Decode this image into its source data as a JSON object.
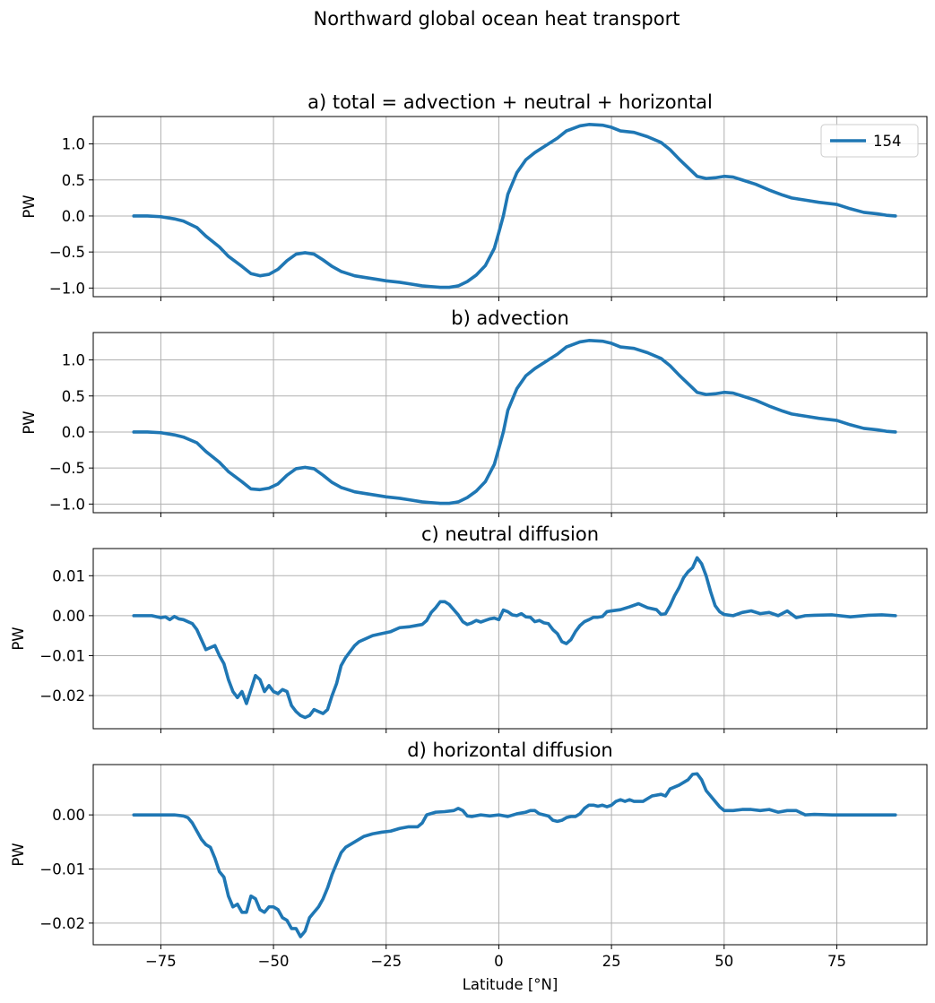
{
  "figure_title": "Northward global ocean heat transport",
  "chart_data": [
    {
      "type": "line",
      "title": "a) total = advection + neutral + horizontal",
      "xlabel": "",
      "ylabel": "PW",
      "xlim": [
        -90,
        95
      ],
      "ylim": [
        -1.12,
        1.38
      ],
      "xticks": [
        -75,
        -50,
        -25,
        0,
        25,
        50,
        75
      ],
      "xtick_labels": [
        "−75",
        "−50",
        "−25",
        "0",
        "25",
        "50",
        "75"
      ],
      "show_xtick_labels": false,
      "yticks": [
        -1.0,
        -0.5,
        0.0,
        0.5,
        1.0
      ],
      "ytick_labels": [
        "−1.0",
        "−0.5",
        "0.0",
        "0.5",
        "1.0"
      ],
      "grid": true,
      "legend": {
        "position": "upper-right",
        "entries": [
          "154"
        ]
      },
      "series": [
        {
          "name": "154",
          "color": "#1f77b4",
          "x": [
            -81,
            -78,
            -75,
            -72,
            -70,
            -67,
            -65,
            -62,
            -60,
            -57,
            -55,
            -53,
            -51,
            -49,
            -47,
            -45,
            -43,
            -41,
            -39,
            -37,
            -35,
            -32,
            -30,
            -27,
            -25,
            -22,
            -20,
            -17,
            -15,
            -13,
            -11,
            -9,
            -7,
            -5,
            -3,
            -1,
            0,
            1,
            2,
            4,
            6,
            8,
            10,
            13,
            15,
            18,
            20,
            23,
            25,
            27,
            30,
            33,
            36,
            38,
            40,
            42,
            44,
            46,
            48,
            50,
            52,
            54,
            57,
            60,
            63,
            65,
            68,
            71,
            75,
            78,
            81,
            84,
            86,
            88
          ],
          "y": [
            0.0,
            0.0,
            -0.01,
            -0.04,
            -0.07,
            -0.16,
            -0.28,
            -0.43,
            -0.56,
            -0.7,
            -0.8,
            -0.83,
            -0.81,
            -0.74,
            -0.62,
            -0.53,
            -0.51,
            -0.53,
            -0.61,
            -0.7,
            -0.77,
            -0.83,
            -0.85,
            -0.88,
            -0.9,
            -0.92,
            -0.94,
            -0.97,
            -0.98,
            -0.99,
            -0.99,
            -0.97,
            -0.91,
            -0.82,
            -0.69,
            -0.45,
            -0.23,
            0.0,
            0.3,
            0.6,
            0.78,
            0.88,
            0.96,
            1.08,
            1.18,
            1.25,
            1.27,
            1.26,
            1.23,
            1.18,
            1.16,
            1.1,
            1.02,
            0.92,
            0.79,
            0.67,
            0.55,
            0.52,
            0.53,
            0.55,
            0.54,
            0.5,
            0.44,
            0.36,
            0.29,
            0.25,
            0.22,
            0.19,
            0.16,
            0.1,
            0.05,
            0.03,
            0.01,
            0.0
          ]
        }
      ]
    },
    {
      "type": "line",
      "title": "b) advection",
      "xlabel": "",
      "ylabel": "PW",
      "xlim": [
        -90,
        95
      ],
      "ylim": [
        -1.12,
        1.38
      ],
      "xticks": [
        -75,
        -50,
        -25,
        0,
        25,
        50,
        75
      ],
      "xtick_labels": [
        "−75",
        "−50",
        "−25",
        "0",
        "25",
        "50",
        "75"
      ],
      "show_xtick_labels": false,
      "yticks": [
        -1.0,
        -0.5,
        0.0,
        0.5,
        1.0
      ],
      "ytick_labels": [
        "−1.0",
        "−0.5",
        "0.0",
        "0.5",
        "1.0"
      ],
      "grid": true,
      "series": [
        {
          "name": "154",
          "color": "#1f77b4",
          "x": [
            -81,
            -78,
            -75,
            -72,
            -70,
            -67,
            -65,
            -62,
            -60,
            -57,
            -55,
            -53,
            -51,
            -49,
            -47,
            -45,
            -43,
            -41,
            -39,
            -37,
            -35,
            -32,
            -30,
            -27,
            -25,
            -22,
            -20,
            -17,
            -15,
            -13,
            -11,
            -9,
            -7,
            -5,
            -3,
            -1,
            0,
            1,
            2,
            4,
            6,
            8,
            10,
            13,
            15,
            18,
            20,
            23,
            25,
            27,
            30,
            33,
            36,
            38,
            40,
            42,
            44,
            46,
            48,
            50,
            52,
            54,
            57,
            60,
            63,
            65,
            68,
            71,
            75,
            78,
            81,
            84,
            86,
            88
          ],
          "y": [
            0.0,
            0.0,
            -0.01,
            -0.04,
            -0.07,
            -0.15,
            -0.27,
            -0.42,
            -0.55,
            -0.69,
            -0.79,
            -0.8,
            -0.78,
            -0.72,
            -0.6,
            -0.51,
            -0.49,
            -0.51,
            -0.6,
            -0.7,
            -0.77,
            -0.83,
            -0.85,
            -0.88,
            -0.9,
            -0.92,
            -0.94,
            -0.97,
            -0.98,
            -0.99,
            -0.99,
            -0.97,
            -0.91,
            -0.82,
            -0.69,
            -0.45,
            -0.23,
            0.0,
            0.3,
            0.6,
            0.78,
            0.88,
            0.96,
            1.08,
            1.18,
            1.25,
            1.27,
            1.26,
            1.23,
            1.18,
            1.16,
            1.1,
            1.02,
            0.92,
            0.79,
            0.67,
            0.55,
            0.52,
            0.53,
            0.55,
            0.54,
            0.5,
            0.44,
            0.36,
            0.29,
            0.25,
            0.22,
            0.19,
            0.16,
            0.1,
            0.05,
            0.03,
            0.01,
            0.0
          ]
        }
      ]
    },
    {
      "type": "line",
      "title": "c) neutral diffusion",
      "xlabel": "",
      "ylabel": "PW",
      "xlim": [
        -90,
        95
      ],
      "ylim": [
        -0.0283,
        0.0168
      ],
      "xticks": [
        -75,
        -50,
        -25,
        0,
        25,
        50,
        75
      ],
      "xtick_labels": [
        "−75",
        "−50",
        "−25",
        "0",
        "25",
        "50",
        "75"
      ],
      "show_xtick_labels": false,
      "yticks": [
        -0.02,
        -0.01,
        0.0,
        0.01
      ],
      "ytick_labels": [
        "−0.02",
        "−0.01",
        "0.00",
        "0.01"
      ],
      "grid": true,
      "series": [
        {
          "name": "154",
          "color": "#1f77b4",
          "x": [
            -81,
            -77,
            -75,
            -74,
            -73,
            -72,
            -71,
            -70,
            -69,
            -68,
            -67,
            -66,
            -65,
            -64,
            -63,
            -62,
            -61,
            -60,
            -59,
            -58,
            -57,
            -56,
            -55,
            -54,
            -53,
            -52,
            -51,
            -50,
            -49,
            -48,
            -47,
            -46,
            -45,
            -44,
            -43,
            -42,
            -41,
            -40,
            -39,
            -38,
            -37,
            -36,
            -35,
            -34,
            -33,
            -32,
            -31,
            -30,
            -28,
            -26,
            -24,
            -22,
            -20,
            -18,
            -17,
            -16,
            -15,
            -14,
            -13,
            -12,
            -11,
            -10,
            -9,
            -8,
            -7,
            -6,
            -5,
            -4,
            -3,
            -2,
            -1,
            0,
            1,
            2,
            3,
            4,
            5,
            6,
            7,
            8,
            9,
            10,
            11,
            12,
            13,
            14,
            15,
            16,
            17,
            18,
            19,
            20,
            21,
            22,
            23,
            24,
            25,
            27,
            29,
            31,
            33,
            35,
            36,
            37,
            38,
            39,
            40,
            41,
            42,
            43,
            44,
            45,
            46,
            47,
            48,
            49,
            50,
            52,
            54,
            56,
            58,
            60,
            62,
            64,
            66,
            68,
            70,
            74,
            78,
            82,
            85,
            88
          ],
          "y": [
            0.0,
            0.0,
            -0.0005,
            -0.0003,
            -0.001,
            -0.0002,
            -0.0008,
            -0.001,
            -0.0015,
            -0.002,
            -0.0035,
            -0.006,
            -0.0085,
            -0.008,
            -0.0075,
            -0.01,
            -0.012,
            -0.016,
            -0.019,
            -0.0205,
            -0.019,
            -0.022,
            -0.0185,
            -0.015,
            -0.016,
            -0.019,
            -0.0175,
            -0.019,
            -0.0195,
            -0.0185,
            -0.019,
            -0.0225,
            -0.024,
            -0.025,
            -0.0255,
            -0.025,
            -0.0235,
            -0.024,
            -0.0245,
            -0.0235,
            -0.02,
            -0.017,
            -0.0125,
            -0.0105,
            -0.009,
            -0.0075,
            -0.0065,
            -0.006,
            -0.005,
            -0.0045,
            -0.004,
            -0.003,
            -0.0028,
            -0.0024,
            -0.0022,
            -0.0012,
            0.0008,
            0.002,
            0.0035,
            0.0035,
            0.0028,
            0.0015,
            0.0002,
            -0.0015,
            -0.0022,
            -0.0018,
            -0.0012,
            -0.0016,
            -0.0012,
            -0.0008,
            -0.0006,
            -0.001,
            0.0014,
            0.001,
            0.0002,
            0.0,
            0.0005,
            -0.0003,
            -0.0004,
            -0.0015,
            -0.0012,
            -0.0018,
            -0.002,
            -0.0035,
            -0.0045,
            -0.0065,
            -0.007,
            -0.006,
            -0.004,
            -0.0025,
            -0.0015,
            -0.001,
            -0.0004,
            -0.0004,
            -0.0002,
            0.001,
            0.0012,
            0.0015,
            0.0022,
            0.003,
            0.002,
            0.0015,
            0.0003,
            0.0005,
            0.0025,
            0.005,
            0.007,
            0.0095,
            0.011,
            0.012,
            0.0145,
            0.013,
            0.01,
            0.006,
            0.0025,
            0.001,
            0.0003,
            0.0,
            0.0008,
            0.0012,
            0.0005,
            0.0008,
            0.0,
            0.0012,
            -0.0005,
            0.0,
            0.0001,
            0.0002,
            -0.0003,
            0.0001,
            0.0002,
            0.0
          ]
        }
      ]
    },
    {
      "type": "line",
      "title": "d) horizontal diffusion",
      "xlabel": "Latitude [°N]",
      "ylabel": "PW",
      "xlim": [
        -90,
        95
      ],
      "ylim": [
        -0.024,
        0.0093
      ],
      "xticks": [
        -75,
        -50,
        -25,
        0,
        25,
        50,
        75
      ],
      "xtick_labels": [
        "−75",
        "−50",
        "−25",
        "0",
        "25",
        "50",
        "75"
      ],
      "show_xtick_labels": true,
      "yticks": [
        -0.02,
        -0.01,
        0.0
      ],
      "ytick_labels": [
        "−0.02",
        "−0.01",
        "0.00"
      ],
      "grid": true,
      "series": [
        {
          "name": "154",
          "color": "#1f77b4",
          "x": [
            -81,
            -77,
            -74,
            -72,
            -70,
            -69,
            -68,
            -67,
            -66,
            -65,
            -64,
            -63,
            -62,
            -61,
            -60,
            -59,
            -58,
            -57,
            -56,
            -55,
            -54,
            -53,
            -52,
            -51,
            -50,
            -49,
            -48,
            -47,
            -46,
            -45,
            -44,
            -43,
            -42,
            -41,
            -40,
            -39,
            -38,
            -37,
            -36,
            -35,
            -34,
            -33,
            -32,
            -31,
            -30,
            -28,
            -26,
            -24,
            -22,
            -20,
            -18,
            -17,
            -16,
            -14,
            -12,
            -10,
            -9,
            -8,
            -7,
            -6,
            -4,
            -2,
            0,
            2,
            4,
            6,
            7,
            8,
            9,
            10,
            11,
            12,
            13,
            14,
            15,
            16,
            17,
            18,
            19,
            20,
            21,
            22,
            23,
            24,
            25,
            26,
            27,
            28,
            29,
            30,
            32,
            34,
            36,
            37,
            38,
            40,
            41,
            42,
            43,
            44,
            45,
            46,
            47,
            48,
            49,
            50,
            52,
            54,
            56,
            58,
            60,
            62,
            64,
            66,
            68,
            70,
            74,
            78,
            82,
            85,
            88
          ],
          "y": [
            0.0,
            0.0,
            0.0,
            0.0,
            -0.0002,
            -0.0005,
            -0.0015,
            -0.003,
            -0.0045,
            -0.0055,
            -0.006,
            -0.008,
            -0.0105,
            -0.0115,
            -0.015,
            -0.017,
            -0.0165,
            -0.018,
            -0.018,
            -0.015,
            -0.0155,
            -0.0175,
            -0.018,
            -0.017,
            -0.017,
            -0.0175,
            -0.019,
            -0.0195,
            -0.021,
            -0.021,
            -0.0225,
            -0.0215,
            -0.019,
            -0.018,
            -0.017,
            -0.0155,
            -0.0135,
            -0.011,
            -0.009,
            -0.007,
            -0.006,
            -0.0055,
            -0.005,
            -0.0045,
            -0.004,
            -0.0035,
            -0.0032,
            -0.003,
            -0.0025,
            -0.0022,
            -0.0022,
            -0.0015,
            0.0,
            0.0005,
            0.0006,
            0.0008,
            0.0012,
            0.0008,
            -0.0002,
            -0.0003,
            0.0,
            -0.0002,
            0.0,
            -0.0003,
            0.0002,
            0.0005,
            0.0008,
            0.0008,
            0.0002,
            0.0,
            -0.0002,
            -0.001,
            -0.0012,
            -0.001,
            -0.0005,
            -0.0003,
            -0.0003,
            0.0002,
            0.0012,
            0.0018,
            0.0018,
            0.0016,
            0.0018,
            0.0015,
            0.0018,
            0.0025,
            0.0028,
            0.0025,
            0.0028,
            0.0025,
            0.0025,
            0.0035,
            0.0038,
            0.0035,
            0.0048,
            0.0055,
            0.006,
            0.0065,
            0.0075,
            0.0076,
            0.0065,
            0.0045,
            0.0035,
            0.0025,
            0.0015,
            0.0008,
            0.0008,
            0.001,
            0.001,
            0.0008,
            0.001,
            0.0005,
            0.0008,
            0.0008,
            0.0,
            0.0001,
            0.0,
            0.0,
            0.0,
            0.0,
            0.0
          ]
        }
      ]
    }
  ]
}
